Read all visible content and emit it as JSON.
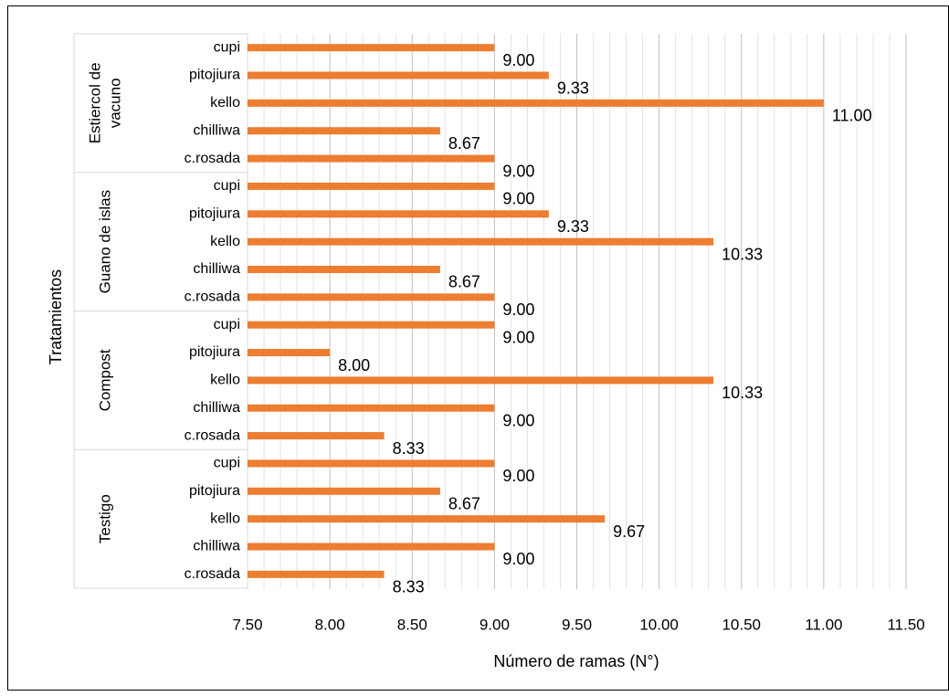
{
  "chart_data": {
    "type": "bar",
    "orientation": "horizontal",
    "xlabel": "Número de ramas (N°)",
    "ylabel": "Tratamientos",
    "xlim": [
      7.5,
      11.5
    ],
    "x_ticks": [
      "7.50",
      "8.00",
      "8.50",
      "9.00",
      "9.50",
      "10.00",
      "10.50",
      "11.00",
      "11.50"
    ],
    "minor_grid_step": 0.1,
    "grid": true,
    "legend": "none",
    "bar_color": "#ED7D31",
    "groups": [
      {
        "name": "Estiercol de vacuno",
        "name_lines": [
          "Estiercol de",
          "vacuno"
        ],
        "bars": [
          {
            "label": "cupi",
            "value": 9.0,
            "value_label": "9.00"
          },
          {
            "label": "pitojiura",
            "value": 9.33,
            "value_label": "9.33"
          },
          {
            "label": "kello",
            "value": 11.0,
            "value_label": "11.00"
          },
          {
            "label": "chilliwa",
            "value": 8.67,
            "value_label": "8.67"
          },
          {
            "label": "c.rosada",
            "value": 9.0,
            "value_label": "9.00"
          }
        ]
      },
      {
        "name": "Guano de islas",
        "name_lines": [
          "Guano de islas"
        ],
        "bars": [
          {
            "label": "cupi",
            "value": 9.0,
            "value_label": "9.00"
          },
          {
            "label": "pitojiura",
            "value": 9.33,
            "value_label": "9.33"
          },
          {
            "label": "kello",
            "value": 10.33,
            "value_label": "10.33"
          },
          {
            "label": "chilliwa",
            "value": 8.67,
            "value_label": "8.67"
          },
          {
            "label": "c.rosada",
            "value": 9.0,
            "value_label": "9.00"
          }
        ]
      },
      {
        "name": "Compost",
        "name_lines": [
          "Compost"
        ],
        "bars": [
          {
            "label": "cupi",
            "value": 9.0,
            "value_label": "9.00"
          },
          {
            "label": "pitojiura",
            "value": 8.0,
            "value_label": "8.00"
          },
          {
            "label": "kello",
            "value": 10.33,
            "value_label": "10.33"
          },
          {
            "label": "chilliwa",
            "value": 9.0,
            "value_label": "9.00"
          },
          {
            "label": "c.rosada",
            "value": 8.33,
            "value_label": "8.33"
          }
        ]
      },
      {
        "name": "Testigo",
        "name_lines": [
          "Testigo"
        ],
        "bars": [
          {
            "label": "cupi",
            "value": 9.0,
            "value_label": "9.00"
          },
          {
            "label": "pitojiura",
            "value": 8.67,
            "value_label": "8.67"
          },
          {
            "label": "kello",
            "value": 9.67,
            "value_label": "9.67"
          },
          {
            "label": "chilliwa",
            "value": 9.0,
            "value_label": "9.00"
          },
          {
            "label": "c.rosada",
            "value": 8.33,
            "value_label": "8.33"
          }
        ]
      }
    ]
  }
}
